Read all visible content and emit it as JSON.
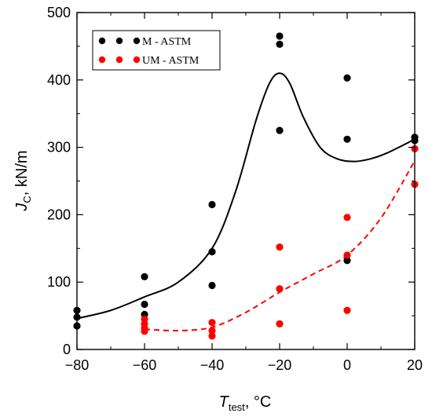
{
  "chart_data": {
    "type": "scatter",
    "xlabel": {
      "main": "T",
      "sub": "test",
      "unit": ", °C"
    },
    "ylabel": {
      "main": "J",
      "sub": "C",
      "unit": ", kN/m"
    },
    "xlim": [
      -80,
      20
    ],
    "ylim": [
      0,
      500
    ],
    "xticks": [
      -80,
      -60,
      -40,
      -20,
      0,
      20
    ],
    "yticks": [
      0,
      100,
      200,
      300,
      400,
      500
    ],
    "legend_position": "top-left",
    "series": [
      {
        "name": "M - ASTM",
        "color": "#000000",
        "points": [
          [
            -80,
            58
          ],
          [
            -80,
            48
          ],
          [
            -80,
            35
          ],
          [
            -60,
            108
          ],
          [
            -60,
            67
          ],
          [
            -60,
            52
          ],
          [
            -40,
            215
          ],
          [
            -40,
            145
          ],
          [
            -40,
            95
          ],
          [
            -20,
            465
          ],
          [
            -20,
            453
          ],
          [
            -20,
            325
          ],
          [
            0,
            403
          ],
          [
            0,
            312
          ],
          [
            0,
            132
          ],
          [
            20,
            315
          ],
          [
            20,
            310
          ]
        ],
        "fit": {
          "style": "solid",
          "x": [
            -80,
            -70,
            -60,
            -50,
            -40,
            -33,
            -27,
            -23,
            -20,
            -17,
            -13,
            -8,
            -3,
            2,
            7,
            12,
            20
          ],
          "y": [
            46,
            58,
            78,
            100,
            150,
            235,
            340,
            395,
            410,
            395,
            345,
            300,
            283,
            279,
            283,
            292,
            312
          ]
        }
      },
      {
        "name": "UM - ASTM",
        "color": "#ff0000",
        "points": [
          [
            -60,
            45
          ],
          [
            -60,
            38
          ],
          [
            -60,
            32
          ],
          [
            -60,
            27
          ],
          [
            -40,
            40
          ],
          [
            -40,
            28
          ],
          [
            -40,
            20
          ],
          [
            -20,
            152
          ],
          [
            -20,
            90
          ],
          [
            -20,
            38
          ],
          [
            0,
            196
          ],
          [
            0,
            140
          ],
          [
            0,
            58
          ],
          [
            20,
            298
          ],
          [
            20,
            245
          ]
        ],
        "fit": {
          "style": "dashed",
          "x": [
            -60,
            -50,
            -40,
            -30,
            -20,
            -10,
            0,
            10,
            20
          ],
          "y": [
            30,
            28,
            33,
            55,
            85,
            112,
            140,
            195,
            280
          ]
        }
      }
    ]
  }
}
